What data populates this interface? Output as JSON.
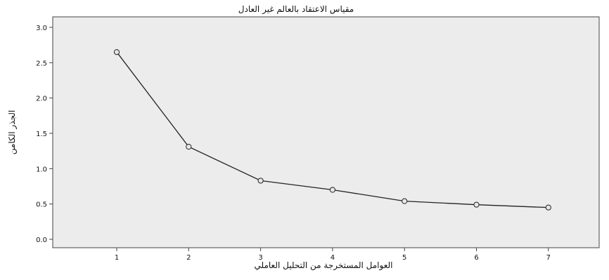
{
  "chart_data": {
    "type": "line",
    "title": "مقياس الاعتقاد بالعالم غير العادل",
    "xlabel": "العوامل المستخرجة من التحليل العاملي",
    "ylabel": "الجذر الكامن",
    "x": [
      1,
      2,
      3,
      4,
      5,
      6,
      7
    ],
    "xticks": [
      "1",
      "2",
      "3",
      "4",
      "5",
      "6",
      "7"
    ],
    "ylim": [
      0.0,
      3.0
    ],
    "yticks": [
      "0.0",
      "0.5",
      "1.0",
      "1.5",
      "2.0",
      "2.5",
      "3.0"
    ],
    "series": [
      {
        "values": [
          2.65,
          1.31,
          0.83,
          0.7,
          0.54,
          0.49,
          0.45
        ]
      }
    ],
    "grid": false,
    "colors": {
      "plot_background": "#ececec",
      "line": "#222222",
      "marker_fill": "#e6e6e6",
      "frame": "#444444"
    }
  }
}
